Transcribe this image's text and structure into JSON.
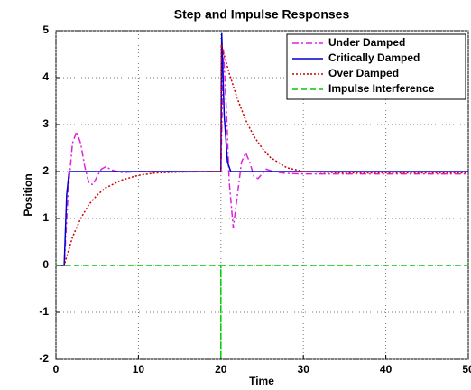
{
  "chart_data": {
    "type": "line",
    "title": "Step and Impulse Responses",
    "xlabel": "Time",
    "ylabel": "Position",
    "xlim": [
      0,
      50
    ],
    "xticks": [
      0,
      10,
      20,
      30,
      40,
      50
    ],
    "ylim": [
      -2,
      5
    ],
    "yticks": [
      -2,
      -1,
      0,
      1,
      2,
      3,
      4,
      5
    ],
    "grid": true,
    "legend": "upper right",
    "series": [
      {
        "name": "Under Damped",
        "color": "#e020e0",
        "style": "dashdot",
        "x": [
          0,
          1,
          1.5,
          2,
          2.5,
          3,
          3.5,
          4,
          4.5,
          5,
          5.5,
          6,
          7,
          8,
          10,
          15,
          19.9,
          20,
          20.3,
          20.7,
          21,
          21.5,
          22,
          22.5,
          23,
          23.5,
          24,
          24.5,
          25,
          25.5,
          26,
          27,
          28,
          30,
          40,
          50
        ],
        "values": [
          0,
          0,
          1.6,
          2.6,
          2.85,
          2.6,
          2.1,
          1.75,
          1.72,
          1.9,
          2.05,
          2.1,
          2.02,
          1.98,
          2,
          2,
          2,
          2,
          4.6,
          3.2,
          1.8,
          0.8,
          1.5,
          2.2,
          2.4,
          2.2,
          1.9,
          1.85,
          1.95,
          2.05,
          2.02,
          1.98,
          1.96,
          1.95,
          1.95,
          1.95
        ]
      },
      {
        "name": "Critically Damped",
        "color": "#0000cc",
        "style": "solid",
        "x": [
          0,
          1,
          1.3,
          1.6,
          2,
          20,
          20.1,
          20.4,
          20.8,
          21.2,
          50
        ],
        "values": [
          0,
          0,
          1.5,
          2,
          2,
          2,
          4.95,
          3.2,
          2.2,
          2,
          2
        ]
      },
      {
        "name": "Over Damped",
        "color": "#cc0000",
        "style": "dotted",
        "x": [
          0,
          1,
          2,
          3,
          4,
          5,
          6,
          8,
          10,
          12,
          15,
          20,
          20.05,
          21,
          22,
          23,
          24,
          25,
          26,
          28,
          30,
          35,
          50
        ],
        "values": [
          0,
          0,
          0.6,
          1.0,
          1.3,
          1.5,
          1.65,
          1.82,
          1.92,
          1.97,
          1.99,
          2,
          4.7,
          4.1,
          3.55,
          3.1,
          2.75,
          2.5,
          2.3,
          2.08,
          2,
          1.97,
          1.97
        ]
      },
      {
        "name": "Impulse Interference",
        "color": "#00cc00",
        "style": "dashed",
        "x": [
          0,
          20,
          20,
          20,
          50
        ],
        "values": [
          0,
          0,
          -2,
          0,
          0
        ]
      }
    ]
  }
}
